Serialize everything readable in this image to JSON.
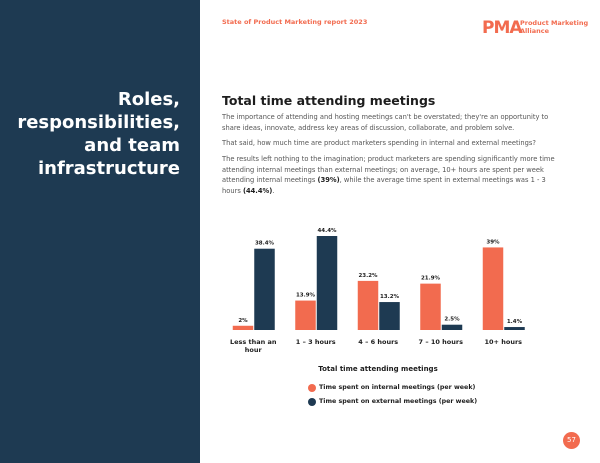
{
  "header": {
    "report_title": "State of Product Marketing report 2023",
    "logo_mark": "PMA",
    "logo_text": "Product Marketing Alliance"
  },
  "sidebar": {
    "title": "Roles, responsibilities, and team infrastructure"
  },
  "article": {
    "heading": "Total time attending meetings",
    "paragraphs": [
      "The importance of attending and hosting meetings can't be overstated; they're an opportunity to share ideas, innovate, address key areas of discussion, collaborate, and problem solve.",
      "That said, how much time are product marketers spending in internal and external meetings?"
    ],
    "results_runs": [
      "The results left nothing to the imagination; product marketers are spending significantly more time attending internal meetings than external meetings; on average, 10+ hours are spent per week attending internal meetings ",
      "(39%)",
      ", while the average time spent in external meetings was 1 - 3 hours ",
      "(44.4%)",
      "."
    ]
  },
  "chart_data": {
    "type": "bar",
    "title": "Total time attending meetings",
    "categories": [
      "Less than an hour",
      "1 – 3 hours",
      "4 – 6 hours",
      "7 – 10 hours",
      "10+ hours"
    ],
    "series": [
      {
        "name": "Time spent on internal meetings (per week)",
        "color": "#f26b4f",
        "values": [
          2,
          13.9,
          23.2,
          21.9,
          39
        ],
        "value_labels": [
          "2%",
          "13.9%",
          "23.2%",
          "21.9%",
          "39%"
        ]
      },
      {
        "name": "Time spent on external meetings (per week)",
        "color": "#1e3a52",
        "values": [
          38.4,
          44.4,
          13.2,
          2.5,
          1.4
        ],
        "value_labels": [
          "38.4%",
          "44.4%",
          "13.2%",
          "2.5%",
          "1.4%"
        ]
      }
    ]
  },
  "page_number": "57"
}
